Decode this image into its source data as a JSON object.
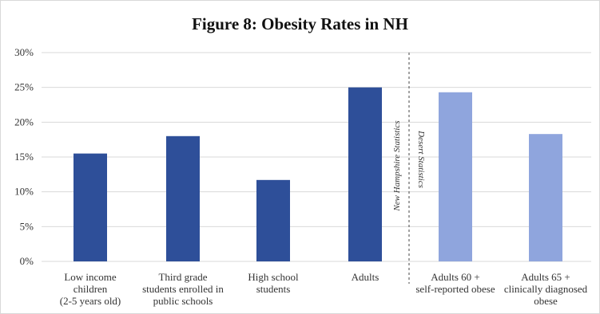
{
  "chart_data": {
    "type": "bar",
    "title": "Figure 8: Obesity Rates in NH",
    "xlabel": "",
    "ylabel": "",
    "ylim": [
      0,
      30
    ],
    "yticks": [
      "0%",
      "5%",
      "10%",
      "15%",
      "20%",
      "25%",
      "30%"
    ],
    "grid": true,
    "categories": [
      "Low income children (2-5 years old)",
      "Third grade students enrolled in public schools",
      "High school students",
      "Adults",
      "Adults 60 + self-reported obese",
      "Adults 65 + clinically diagnosed obese"
    ],
    "category_lines": [
      [
        "Low income",
        "children",
        "(2-5 years old)"
      ],
      [
        "Third grade",
        "students enrolled in",
        "public schools"
      ],
      [
        "High school",
        "students"
      ],
      [
        "Adults"
      ],
      [
        "Adults 60 +",
        "self-reported obese"
      ],
      [
        "Adults 65 +",
        "clinically diagnosed",
        "obese"
      ]
    ],
    "values": [
      15.5,
      18.0,
      11.7,
      25.0,
      24.3,
      18.3
    ],
    "bar_colors": [
      "#2e4f99",
      "#2e4f99",
      "#2e4f99",
      "#2e4f99",
      "#8fa5dd",
      "#8fa5dd"
    ],
    "divider_labels": [
      "New Hampshire Statistics",
      "Desert Statistics"
    ]
  }
}
